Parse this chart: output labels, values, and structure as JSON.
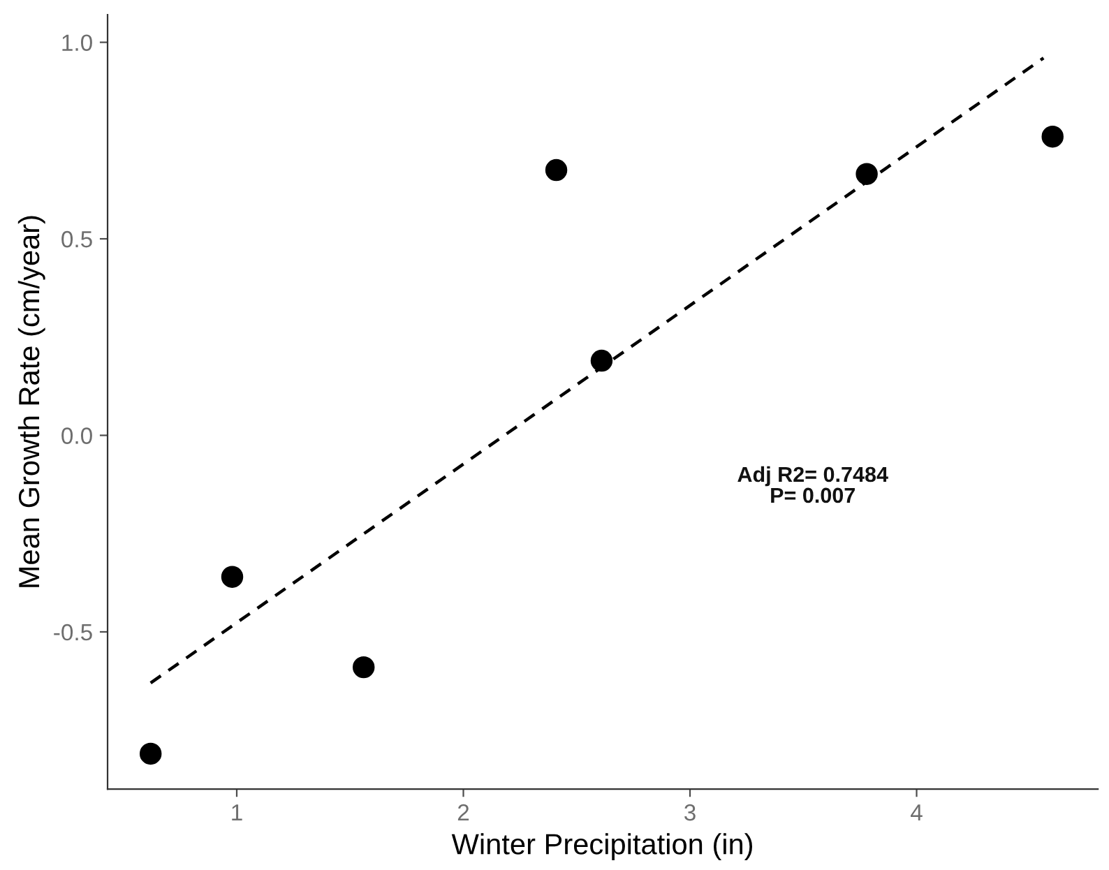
{
  "chart_data": {
    "type": "scatter",
    "xlabel": "Winter Precipitation (in)",
    "ylabel": "Mean Growth Rate (cm/year)",
    "series": [
      {
        "color": "#000000",
        "marker": "circle",
        "x": [
          0.62,
          0.98,
          1.56,
          2.41,
          2.61,
          3.78,
          4.6
        ],
        "values": [
          -0.81,
          -0.36,
          -0.59,
          0.675,
          0.19,
          0.665,
          0.76
        ]
      },
      {
        "type": "line",
        "color": "#000000",
        "line_style": "dashed",
        "marker": "none",
        "x": [
          0.62,
          4.56
        ],
        "values": [
          -0.63,
          0.96
        ]
      }
    ],
    "annotations": [
      "Adj R2= 0.7484",
      "P= 0.007"
    ],
    "xlim": [
      0.43,
      4.8
    ],
    "ylim": [
      -0.9,
      1.07
    ],
    "xticks": [
      1,
      2,
      3,
      4
    ],
    "yticks": [
      {
        "value": -0.5,
        "label": "-0.5"
      },
      {
        "value": 0.0,
        "label": "0.0"
      },
      {
        "value": 0.5,
        "label": "0.5"
      },
      {
        "value": 1.0,
        "label": "1.0"
      }
    ],
    "grid": false,
    "legend": false
  }
}
